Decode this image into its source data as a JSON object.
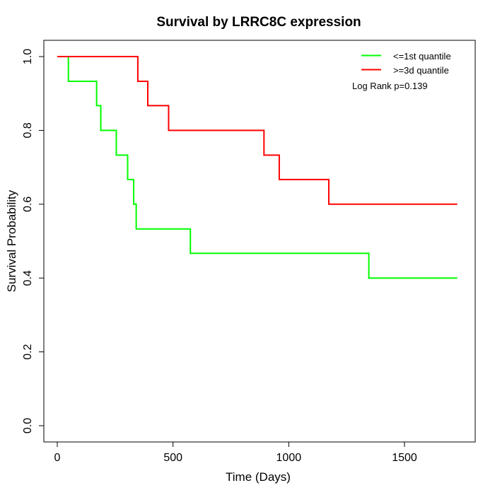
{
  "title": "Survival by LRRC8C expression",
  "chart_data": {
    "type": "line",
    "subtype": "kaplan-meier-step",
    "title": "Survival by LRRC8C expression",
    "xlabel": "Time (Days)",
    "ylabel": "Survival Probability",
    "xlim": [
      0,
      1800
    ],
    "ylim": [
      0.0,
      1.0
    ],
    "grid": false,
    "legend_position": "top-right",
    "annotation": "Log Rank p=0.139",
    "xticks": {
      "values": [
        0,
        500,
        1000,
        1500
      ],
      "labels": [
        "0",
        "500",
        "1000",
        "1500"
      ]
    },
    "yticks": {
      "values": [
        0.0,
        0.2,
        0.4,
        0.6,
        0.8,
        1.0
      ],
      "labels": [
        "0.0",
        "0.2",
        "0.4",
        "0.6",
        "0.8",
        "1.0"
      ]
    },
    "series": [
      {
        "name": "<=1st quantile",
        "slug": "1st-quantile",
        "color": "#00ff00",
        "end_time": 1728,
        "steps": [
          [
            0,
            1.0
          ],
          [
            48,
            0.933
          ],
          [
            170,
            0.867
          ],
          [
            188,
            0.8
          ],
          [
            255,
            0.733
          ],
          [
            304,
            0.667
          ],
          [
            330,
            0.6
          ],
          [
            341,
            0.533
          ],
          [
            575,
            0.467
          ],
          [
            1346,
            0.4
          ]
        ]
      },
      {
        "name": ">=3d quantile",
        "slug": "3d-quantile",
        "color": "#ff0000",
        "end_time": 1728,
        "steps": [
          [
            0,
            1.0
          ],
          [
            348,
            0.933
          ],
          [
            391,
            0.867
          ],
          [
            481,
            0.8
          ],
          [
            893,
            0.733
          ],
          [
            959,
            0.667
          ],
          [
            1173,
            0.6
          ]
        ]
      }
    ]
  }
}
